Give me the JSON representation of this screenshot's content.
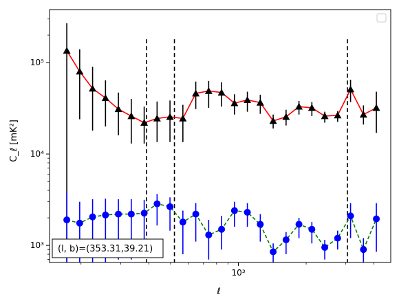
{
  "chart_data": {
    "type": "scatter",
    "xscale": "log",
    "yscale": "log",
    "xlabel": "ℓ",
    "ylabel": "C_ℓ  [mK²]",
    "xlim": [
      145,
      4750
    ],
    "ylim": [
      650,
      380000
    ],
    "x_ticks": [
      {
        "value": 1000,
        "label": "10³"
      }
    ],
    "y_ticks": [
      {
        "value": 1000,
        "label": "10³"
      },
      {
        "value": 10000,
        "label": "10⁴"
      },
      {
        "value": 100000,
        "label": "10⁵"
      }
    ],
    "legend": {
      "position": "top-right",
      "entries": []
    },
    "annotation": {
      "text": "(l, b)=(353.31,39.21)",
      "position": "bottom-left"
    },
    "vlines": [
      391,
      520,
      3050
    ],
    "x": [
      173,
      201,
      234,
      272,
      316,
      367,
      427,
      497,
      577,
      672,
      781,
      908,
      1056,
      1227,
      1427,
      1660,
      1929,
      2244,
      2609,
      3033,
      3526,
      4100
    ],
    "series": [
      {
        "color": "#ff0000",
        "marker": "triangle",
        "marker_color": "#000000",
        "linestyle": "solid",
        "values": [
          135000,
          80000,
          52000,
          41000,
          31000,
          26000,
          22000,
          24500,
          25500,
          24500,
          46000,
          49000,
          47000,
          36000,
          39000,
          36500,
          23000,
          25500,
          33000,
          32000,
          26000,
          26500,
          51000,
          27000,
          32000
        ],
        "err_low": [
          135000,
          56000,
          34000,
          21000,
          15000,
          13000,
          9000,
          11000,
          12000,
          11000,
          15000,
          17000,
          14000,
          9000,
          10000,
          9000,
          4000,
          5000,
          6000,
          6000,
          4000,
          4000,
          14000,
          6000,
          15000
        ],
        "err_high": [
          135000,
          60000,
          38000,
          23000,
          16000,
          14000,
          11000,
          13000,
          13000,
          10000,
          16000,
          14000,
          14000,
          9000,
          9000,
          8000,
          4000,
          5000,
          5000,
          5000,
          3000,
          3000,
          14000,
          7000,
          16000
        ]
      },
      {
        "color": "#008000",
        "marker": "circle",
        "marker_color": "#0000ff",
        "linestyle": "dashed",
        "values": [
          1900,
          1750,
          2050,
          2150,
          2200,
          2200,
          2250,
          2850,
          2650,
          1800,
          2200,
          1300,
          1500,
          2400,
          2300,
          1700,
          850,
          1150,
          1700,
          1500,
          950,
          1200,
          2100,
          900,
          1950
        ],
        "err_low": [
          1250,
          1100,
          1400,
          1500,
          1500,
          1500,
          1200,
          1200,
          1200,
          1000,
          1100,
          600,
          600,
          800,
          700,
          600,
          250,
          350,
          500,
          450,
          250,
          300,
          900,
          300,
          1100
        ],
        "err_high": [
          1900,
          1250,
          1150,
          1100,
          1000,
          1000,
          900,
          800,
          700,
          600,
          700,
          600,
          600,
          600,
          600,
          500,
          200,
          250,
          300,
          300,
          200,
          250,
          800,
          300,
          950
        ]
      }
    ],
    "x_all": [
      173,
      201,
      234,
      272,
      316,
      367,
      427,
      497,
      577,
      672,
      781,
      908,
      1056,
      1227,
      1427,
      1660,
      1929,
      2244,
      2609,
      3033,
      3526,
      4100,
      3050,
      3526,
      4100
    ]
  }
}
